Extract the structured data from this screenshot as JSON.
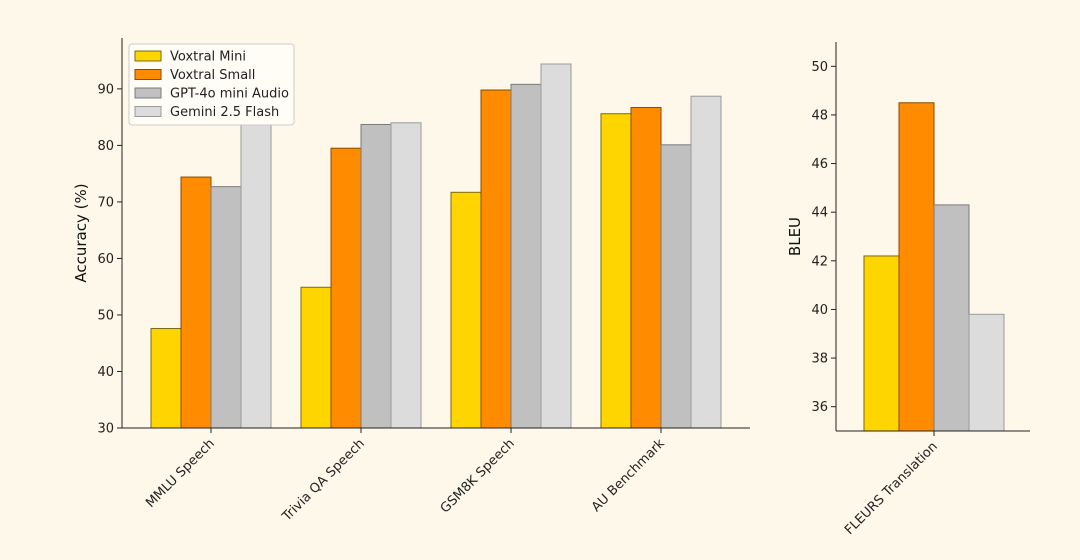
{
  "chart_data": [
    {
      "type": "bar",
      "categories": [
        "MMLU Speech",
        "Trivia QA Speech",
        "GSM8K Speech",
        "AU Benchmark"
      ],
      "series": [
        {
          "name": "Voxtral Mini",
          "values": [
            47.6,
            54.9,
            71.7,
            85.6
          ]
        },
        {
          "name": "Voxtral Small",
          "values": [
            74.4,
            79.5,
            89.8,
            86.7
          ]
        },
        {
          "name": "GPT-4o mini Audio",
          "values": [
            72.7,
            83.7,
            90.8,
            80.1
          ]
        },
        {
          "name": "Gemini 2.5 Flash",
          "values": [
            84.0,
            84.0,
            94.4,
            88.7
          ]
        }
      ],
      "ylabel": "Accuracy (%)",
      "ylim": [
        30,
        99
      ],
      "yticks": [
        30,
        40,
        50,
        60,
        70,
        80,
        90
      ],
      "legend": "top-left",
      "grid": false
    },
    {
      "type": "bar",
      "categories": [
        "FLEURS Translation"
      ],
      "series": [
        {
          "name": "Voxtral Mini",
          "values": [
            42.2
          ]
        },
        {
          "name": "Voxtral Small",
          "values": [
            48.5
          ]
        },
        {
          "name": "GPT-4o mini Audio",
          "values": [
            44.3
          ]
        },
        {
          "name": "Gemini 2.5 Flash",
          "values": [
            39.8
          ]
        }
      ],
      "ylabel": "BLEU",
      "ylim": [
        35,
        51
      ],
      "yticks": [
        36,
        38,
        40,
        42,
        44,
        46,
        48,
        50
      ],
      "grid": false
    }
  ],
  "colors": {
    "series": [
      "#ffd500",
      "#ff8c00",
      "#c0c0c0",
      "#dcdcdc"
    ],
    "edges": [
      "#7a6a10",
      "#8a4a00",
      "#7a7a7a",
      "#9a9a9a"
    ],
    "background": "#fef8ea"
  }
}
